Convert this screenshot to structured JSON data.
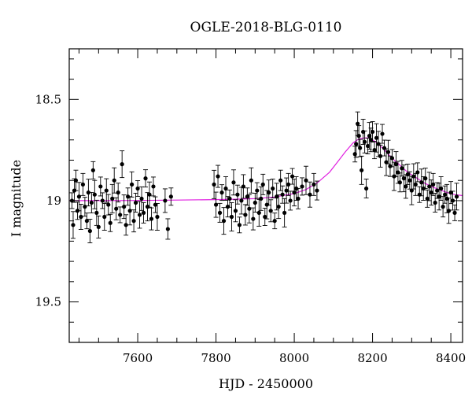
{
  "chart_data": {
    "type": "scatter",
    "title": "OGLE-2018-BLG-0110",
    "xlabel": "HJD - 2450000",
    "ylabel": "I magnitude",
    "xlim": [
      7425,
      8430
    ],
    "ylim": [
      19.7,
      18.25
    ],
    "y_inverted": true,
    "grid": false,
    "x_ticks": [
      7600,
      7800,
      8000,
      8200,
      8400
    ],
    "x_minor_step": 50,
    "y_ticks": [
      18.5,
      19,
      19.5
    ],
    "y_tick_labels": [
      "18.5",
      "19",
      "19.5"
    ],
    "y_minor_step": 0.1,
    "colors": {
      "points": "#000000",
      "model": "#e020e0"
    },
    "model": {
      "name": "",
      "x": [
        7425,
        7500,
        7600,
        7700,
        7800,
        7850,
        7900,
        7950,
        8000,
        8030,
        8060,
        8090,
        8110,
        8130,
        8150,
        8165,
        8180,
        8190,
        8200,
        8215,
        8230,
        8250,
        8270,
        8290,
        8310,
        8330,
        8350,
        8370,
        8390,
        8410,
        8430
      ],
      "y": [
        19.0,
        19.0,
        18.999,
        18.997,
        18.995,
        18.993,
        18.99,
        18.982,
        18.965,
        18.945,
        18.91,
        18.86,
        18.81,
        18.76,
        18.715,
        18.695,
        18.69,
        18.69,
        18.7,
        18.72,
        18.75,
        18.79,
        18.825,
        18.86,
        18.885,
        18.91,
        18.93,
        18.945,
        18.96,
        18.97,
        18.975
      ]
    },
    "series": [
      {
        "name": "",
        "x": [
          7432,
          7435,
          7438,
          7442,
          7446,
          7450,
          7455,
          7460,
          7465,
          7470,
          7474,
          7478,
          7482,
          7486,
          7490,
          7495,
          7500,
          7505,
          7510,
          7515,
          7520,
          7525,
          7530,
          7535,
          7540,
          7545,
          7550,
          7555,
          7560,
          7565,
          7570,
          7575,
          7580,
          7585,
          7590,
          7595,
          7600,
          7605,
          7610,
          7615,
          7620,
          7625,
          7630,
          7635,
          7640,
          7645,
          7650,
          7670,
          7677,
          7685,
          7795,
          7800,
          7805,
          7810,
          7815,
          7820,
          7825,
          7830,
          7835,
          7840,
          7845,
          7850,
          7855,
          7860,
          7865,
          7870,
          7875,
          7880,
          7885,
          7890,
          7895,
          7900,
          7905,
          7910,
          7915,
          7920,
          7925,
          7930,
          7935,
          7940,
          7945,
          7950,
          7955,
          7960,
          7965,
          7970,
          7975,
          7980,
          7985,
          7990,
          7995,
          8000,
          8005,
          8010,
          8020,
          8030,
          8040,
          8050,
          8058,
          8155,
          8158,
          8162,
          8165,
          8168,
          8172,
          8176,
          8180,
          8184,
          8188,
          8192,
          8196,
          8200,
          8205,
          8210,
          8215,
          8220,
          8225,
          8230,
          8235,
          8240,
          8245,
          8250,
          8255,
          8260,
          8265,
          8270,
          8275,
          8280,
          8285,
          8290,
          8295,
          8300,
          8305,
          8310,
          8315,
          8320,
          8325,
          8330,
          8335,
          8340,
          8345,
          8350,
          8355,
          8360,
          8365,
          8370,
          8375,
          8380,
          8385,
          8390,
          8395,
          8400,
          8405,
          8410,
          8415
        ],
        "y": [
          19.0,
          19.12,
          18.95,
          18.9,
          19.05,
          18.98,
          19.08,
          18.92,
          19.03,
          19.1,
          18.96,
          19.15,
          19.01,
          18.85,
          18.97,
          19.06,
          19.13,
          18.93,
          19.0,
          19.08,
          18.95,
          19.02,
          19.11,
          18.99,
          18.9,
          19.04,
          18.96,
          19.07,
          18.82,
          19.03,
          19.12,
          18.98,
          19.05,
          18.92,
          19.1,
          19.01,
          18.94,
          19.07,
          18.99,
          19.06,
          18.89,
          19.03,
          18.97,
          19.09,
          18.93,
          19.02,
          19.08,
          19.0,
          19.14,
          18.98,
          18.92,
          19.02,
          18.88,
          19.06,
          18.96,
          19.1,
          18.94,
          19.03,
          18.99,
          19.08,
          18.91,
          19.05,
          18.97,
          19.12,
          19.0,
          18.93,
          19.07,
          18.98,
          19.04,
          18.9,
          19.09,
          19.01,
          18.95,
          19.06,
          18.99,
          18.92,
          19.08,
          19.02,
          18.96,
          19.05,
          18.94,
          19.1,
          18.98,
          19.03,
          18.9,
          18.97,
          19.06,
          18.95,
          18.92,
          19.0,
          18.88,
          18.96,
          18.94,
          18.99,
          18.93,
          18.9,
          18.97,
          18.92,
          18.95,
          18.77,
          18.72,
          18.62,
          18.68,
          18.74,
          18.85,
          18.66,
          18.71,
          18.94,
          18.73,
          18.68,
          18.7,
          18.66,
          18.75,
          18.69,
          18.72,
          18.78,
          18.67,
          18.74,
          18.81,
          18.76,
          18.83,
          18.79,
          18.88,
          18.82,
          18.86,
          18.91,
          18.84,
          18.89,
          18.93,
          18.87,
          18.9,
          18.95,
          18.88,
          18.92,
          18.86,
          18.97,
          18.91,
          18.94,
          18.89,
          18.99,
          18.93,
          18.96,
          18.92,
          19.01,
          18.95,
          18.98,
          18.94,
          19.03,
          18.97,
          18.99,
          19.05,
          18.96,
          19.0,
          19.06,
          18.98
        ]
      }
    ]
  }
}
